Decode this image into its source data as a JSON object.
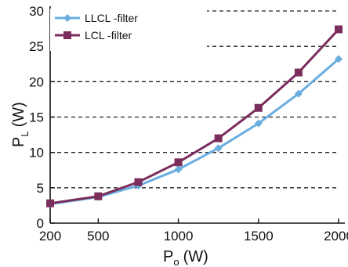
{
  "chart_data": {
    "type": "line",
    "xlabel": "P",
    "xlabel_sub": "o",
    "xlabel_unit": "(W)",
    "ylabel": "P",
    "ylabel_sub": "L",
    "ylabel_unit": "(W)",
    "x_ticks": [
      200,
      500,
      1000,
      1500,
      2000
    ],
    "y_ticks": [
      0,
      5,
      10,
      15,
      20,
      25,
      30
    ],
    "xlim": [
      200,
      2000
    ],
    "ylim": [
      0,
      30
    ],
    "grid": "horizontal dashed",
    "legend_position": "top-left",
    "series": [
      {
        "name": "LLCL -filter",
        "color": "#6aaee0",
        "marker": "diamond",
        "x": [
          200,
          500,
          750,
          1000,
          1250,
          1500,
          1750,
          2000
        ],
        "y": [
          2.7,
          3.7,
          5.3,
          7.6,
          10.6,
          14.1,
          18.3,
          23.2
        ]
      },
      {
        "name": "LCL -filter",
        "color": "#7b2d5c",
        "marker": "square",
        "x": [
          200,
          500,
          750,
          1000,
          1250,
          1500,
          1750,
          2000
        ],
        "y": [
          2.8,
          3.8,
          5.8,
          8.6,
          12.0,
          16.3,
          21.3,
          27.4
        ]
      }
    ]
  }
}
